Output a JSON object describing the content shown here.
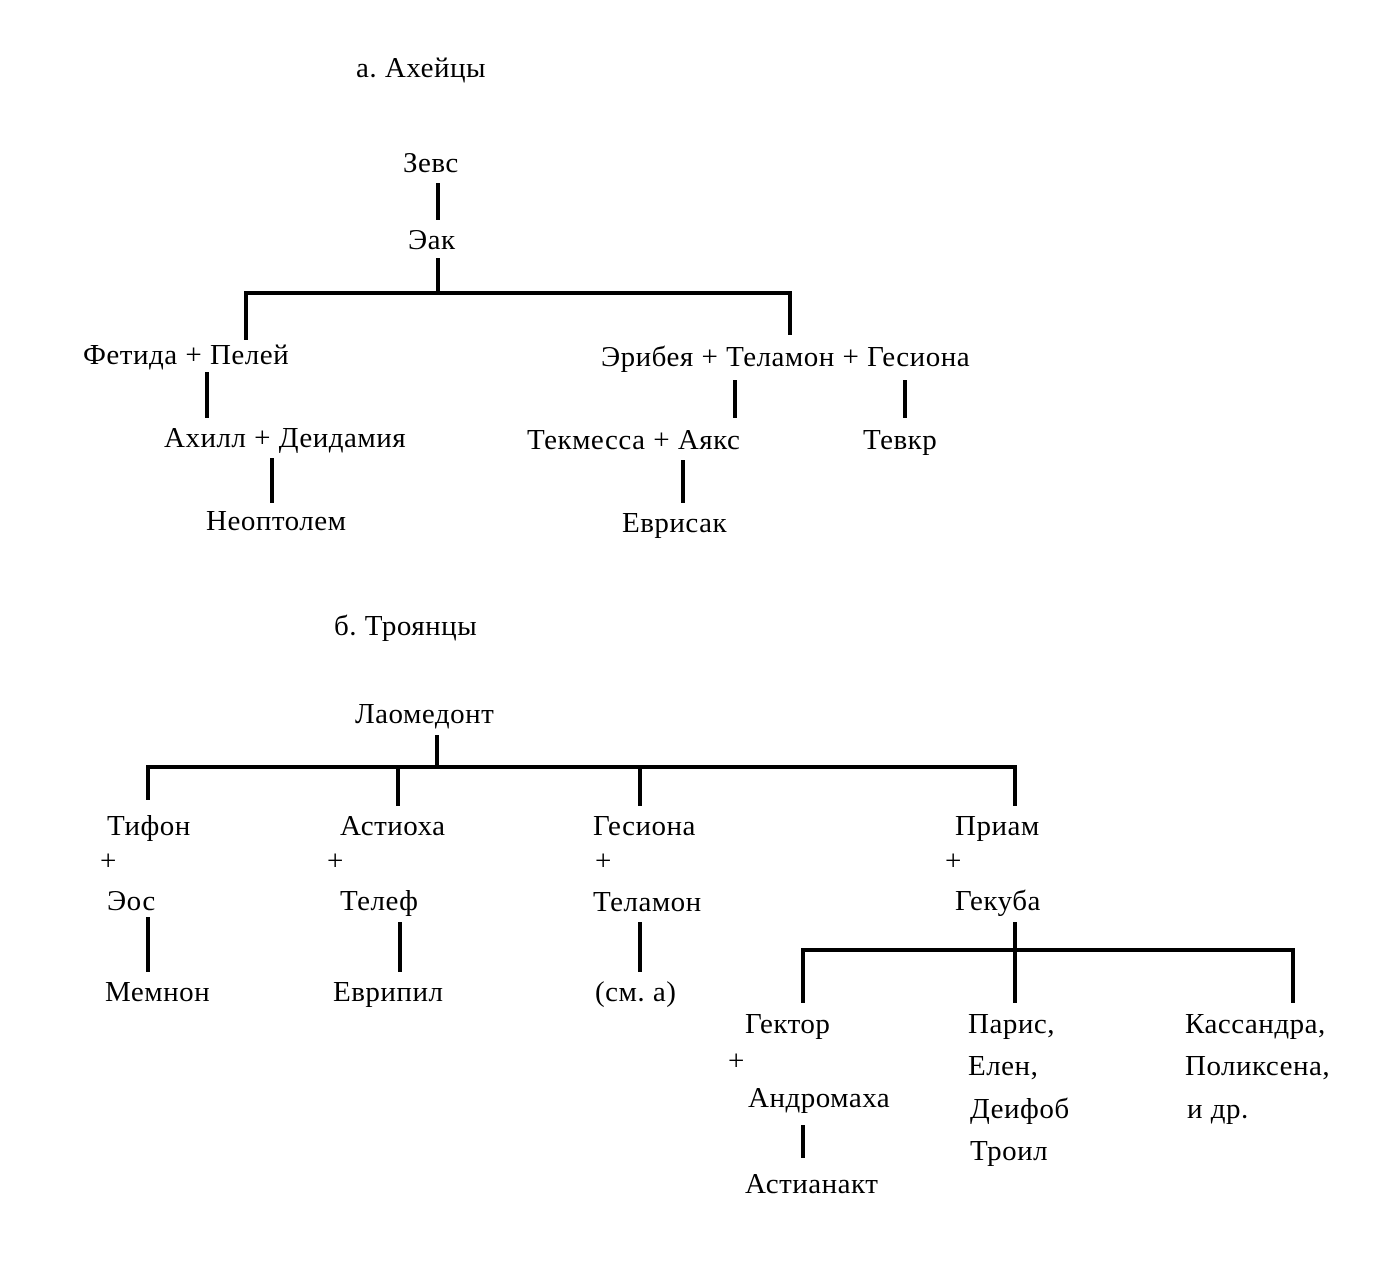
{
  "sections": {
    "achaeans": {
      "title": "а. Ахейцы",
      "zeus": "Зевс",
      "aeacus": "Эак",
      "thetis_peleus": "Фетида + Пелей",
      "eriboea_telamon_hesione": "Эрибея + Теламон + Гесиона",
      "achilles_deidamia": "Ахилл + Деидамия",
      "tecmessa_ajax": "Текмесса + Аякс",
      "teucer": "Тевкр",
      "neoptolemus": "Неоптолем",
      "eurysaces": "Еврисак"
    },
    "trojans": {
      "title": "б. Троянцы",
      "laomedon": "Лаомедонт",
      "plus": "+",
      "tithonus": "Тифон",
      "eos": "Эос",
      "memnon": "Мемнон",
      "astyoche": "Астиоха",
      "telephus": "Телеф",
      "eurypylus": "Еврипил",
      "hesione": "Гесиона",
      "telamon": "Теламон",
      "see_a": "(см. а)",
      "priam": "Приам",
      "hecuba": "Гекуба",
      "hector": "Гектор",
      "andromache": "Андромаха",
      "astyanax": "Астианакт",
      "paris": "Парис,",
      "helenus": "Елен,",
      "deiphobus": "Деифоб",
      "troilus": "Троил",
      "cassandra": "Кассандра,",
      "polyxena": "Поликсена,",
      "others": "и др."
    }
  }
}
